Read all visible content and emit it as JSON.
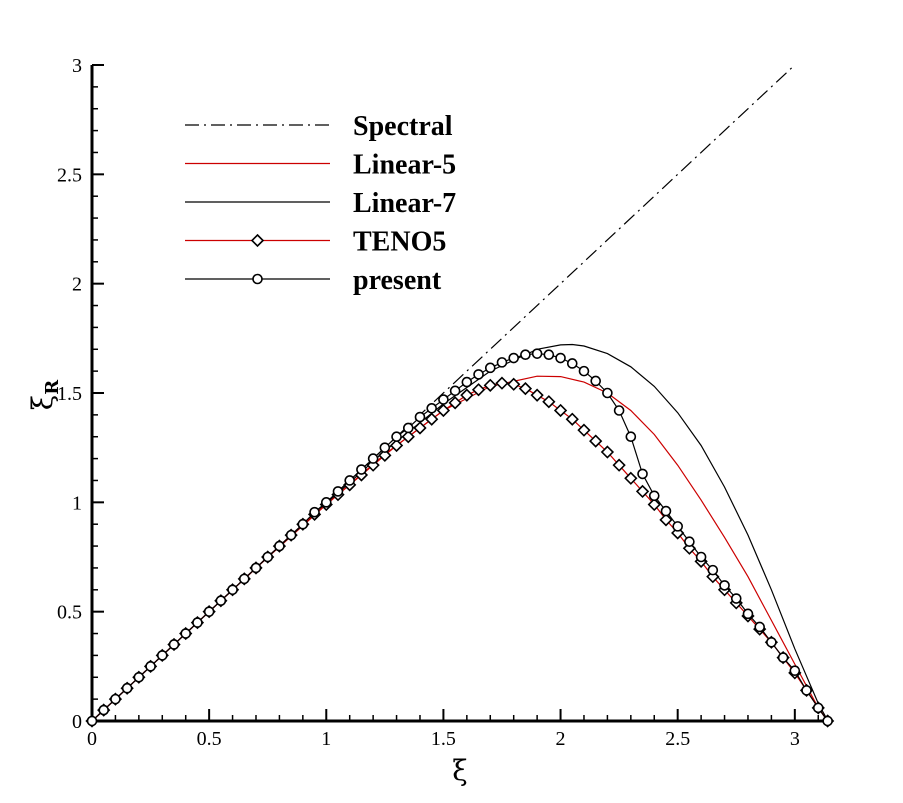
{
  "chart_data": {
    "type": "line",
    "title": "",
    "xlabel": "ξ",
    "ylabel": "ξ",
    "ylabel_subscript": "R",
    "xlim": [
      0,
      3.1416
    ],
    "ylim": [
      0,
      3
    ],
    "xticks": [
      0,
      0.5,
      1,
      1.5,
      2,
      2.5,
      3
    ],
    "yticks": [
      0,
      0.5,
      1,
      1.5,
      2,
      2.5,
      3
    ],
    "xtick_labels": [
      "0",
      "0.5",
      "1",
      "1.5",
      "2",
      "2.5",
      "3"
    ],
    "ytick_labels": [
      "0",
      "0.5",
      "1",
      "1.5",
      "2",
      "2.5",
      "3"
    ],
    "grid": false,
    "legend_position": "top-left",
    "series": [
      {
        "name": "Spectral",
        "color": "#000000",
        "line_style": "dash-dot",
        "marker": "none",
        "x": [
          0,
          3.0
        ],
        "y": [
          0,
          3.0
        ]
      },
      {
        "name": "Linear-5",
        "color": "#cc0000",
        "line_style": "solid",
        "marker": "none",
        "x": [
          0,
          0.25,
          0.5,
          0.75,
          1.0,
          1.25,
          1.5,
          1.7,
          1.9,
          2.0,
          2.1,
          2.2,
          2.3,
          2.4,
          2.5,
          2.6,
          2.7,
          2.8,
          2.9,
          3.0,
          3.1,
          3.1416
        ],
        "y": [
          0,
          0.25,
          0.5,
          0.748,
          0.99,
          1.22,
          1.42,
          1.53,
          1.577,
          1.575,
          1.55,
          1.5,
          1.42,
          1.31,
          1.17,
          1.01,
          0.84,
          0.66,
          0.46,
          0.26,
          0.06,
          0
        ]
      },
      {
        "name": "Linear-7",
        "color": "#000000",
        "line_style": "solid",
        "marker": "none",
        "x": [
          0,
          0.25,
          0.5,
          0.75,
          1.0,
          1.25,
          1.5,
          1.7,
          1.9,
          2.0,
          2.05,
          2.1,
          2.2,
          2.3,
          2.4,
          2.5,
          2.6,
          2.7,
          2.8,
          2.9,
          3.0,
          3.1,
          3.1416
        ],
        "y": [
          0,
          0.25,
          0.5,
          0.75,
          0.995,
          1.235,
          1.45,
          1.6,
          1.7,
          1.72,
          1.722,
          1.715,
          1.68,
          1.62,
          1.53,
          1.41,
          1.26,
          1.07,
          0.85,
          0.6,
          0.33,
          0.08,
          0
        ]
      },
      {
        "name": "TENO5",
        "color": "#cc0000",
        "line_style": "solid",
        "marker": "diamond",
        "x": [
          0.0,
          0.05,
          0.1,
          0.15,
          0.2,
          0.25,
          0.3,
          0.35,
          0.4,
          0.45,
          0.5,
          0.55,
          0.6,
          0.65,
          0.7,
          0.75,
          0.8,
          0.85,
          0.9,
          0.95,
          1.0,
          1.05,
          1.1,
          1.15,
          1.2,
          1.25,
          1.3,
          1.35,
          1.4,
          1.45,
          1.5,
          1.55,
          1.6,
          1.65,
          1.7,
          1.75,
          1.8,
          1.85,
          1.9,
          1.95,
          2.0,
          2.05,
          2.1,
          2.15,
          2.2,
          2.25,
          2.3,
          2.35,
          2.4,
          2.45,
          2.5,
          2.55,
          2.6,
          2.65,
          2.7,
          2.75,
          2.8,
          2.85,
          2.9,
          2.95,
          3.0,
          3.05,
          3.1,
          3.14
        ],
        "y": [
          0.0,
          0.05,
          0.1,
          0.15,
          0.2,
          0.25,
          0.3,
          0.35,
          0.4,
          0.45,
          0.5,
          0.55,
          0.6,
          0.65,
          0.7,
          0.75,
          0.8,
          0.85,
          0.9,
          0.945,
          0.99,
          1.035,
          1.08,
          1.125,
          1.17,
          1.215,
          1.26,
          1.3,
          1.34,
          1.38,
          1.42,
          1.455,
          1.49,
          1.515,
          1.535,
          1.545,
          1.54,
          1.52,
          1.49,
          1.46,
          1.42,
          1.38,
          1.33,
          1.28,
          1.23,
          1.17,
          1.11,
          1.05,
          0.99,
          0.92,
          0.86,
          0.79,
          0.73,
          0.66,
          0.6,
          0.54,
          0.48,
          0.42,
          0.36,
          0.29,
          0.22,
          0.14,
          0.06,
          0.0
        ]
      },
      {
        "name": "present",
        "color": "#000000",
        "line_style": "solid",
        "marker": "circle",
        "x": [
          0.0,
          0.05,
          0.1,
          0.15,
          0.2,
          0.25,
          0.3,
          0.35,
          0.4,
          0.45,
          0.5,
          0.55,
          0.6,
          0.65,
          0.7,
          0.75,
          0.8,
          0.85,
          0.9,
          0.95,
          1.0,
          1.05,
          1.1,
          1.15,
          1.2,
          1.25,
          1.3,
          1.35,
          1.4,
          1.45,
          1.5,
          1.55,
          1.6,
          1.65,
          1.7,
          1.75,
          1.8,
          1.85,
          1.9,
          1.95,
          2.0,
          2.05,
          2.1,
          2.15,
          2.2,
          2.25,
          2.3,
          2.35,
          2.4,
          2.45,
          2.5,
          2.55,
          2.6,
          2.65,
          2.7,
          2.75,
          2.8,
          2.85,
          2.9,
          2.95,
          3.0,
          3.05,
          3.1,
          3.14
        ],
        "y": [
          0.0,
          0.05,
          0.1,
          0.15,
          0.2,
          0.25,
          0.3,
          0.35,
          0.4,
          0.45,
          0.5,
          0.55,
          0.6,
          0.65,
          0.7,
          0.75,
          0.8,
          0.85,
          0.9,
          0.955,
          1.0,
          1.05,
          1.1,
          1.15,
          1.2,
          1.25,
          1.3,
          1.34,
          1.39,
          1.43,
          1.47,
          1.51,
          1.55,
          1.585,
          1.615,
          1.64,
          1.66,
          1.675,
          1.68,
          1.675,
          1.66,
          1.635,
          1.6,
          1.555,
          1.5,
          1.42,
          1.3,
          1.13,
          1.03,
          0.96,
          0.89,
          0.82,
          0.75,
          0.69,
          0.62,
          0.56,
          0.49,
          0.43,
          0.36,
          0.29,
          0.23,
          0.14,
          0.06,
          0.0
        ]
      }
    ]
  }
}
